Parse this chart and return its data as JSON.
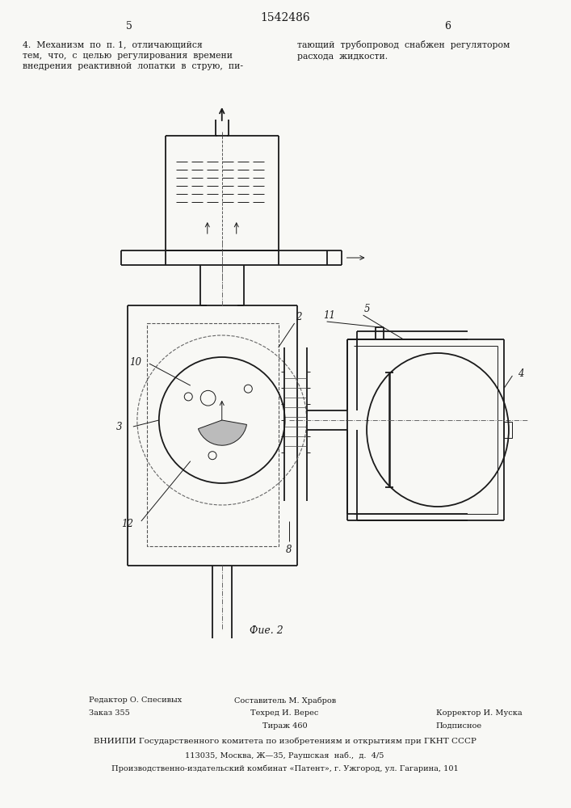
{
  "title": "1542486",
  "page_left": "5",
  "page_right": "6",
  "fig_label": "Фие. 2",
  "text_left": "4.  Механизм  по  п. 1,  отличающийся\nтем,  что,  с  целью  регулирования  времени\nвнедрения  реактивной  лопатки  в  струю,  пи-",
  "text_right": "тающий  трубопровод  снабжен  регулятором\nрасхода  жидкости.",
  "footer_col1_r1": "Редактор О. Спесивых",
  "footer_col2_r1": "Составитель М. Храбров",
  "footer_col1_r2": "Заказ 355",
  "footer_col2_r2": "Техред И. Верес",
  "footer_col3_r2": "Корректор И. Муска",
  "footer_col1_r3": "",
  "footer_col2_r3": "Тираж 460",
  "footer_col3_r3": "Подписное",
  "footer_vniip": "ВНИИПИ Государственного комитета по изобретениям и открытиям при ГКНТ СССР",
  "footer_addr1": "113035, Москва, Ж—35, Раушская  наб.,  д.  4/5",
  "footer_addr2": "Производственно-издательский комбинат «Патент», г. Ужгород, ул. Гагарина, 101",
  "bg_color": "#f8f8f5",
  "line_color": "#1a1a1a"
}
